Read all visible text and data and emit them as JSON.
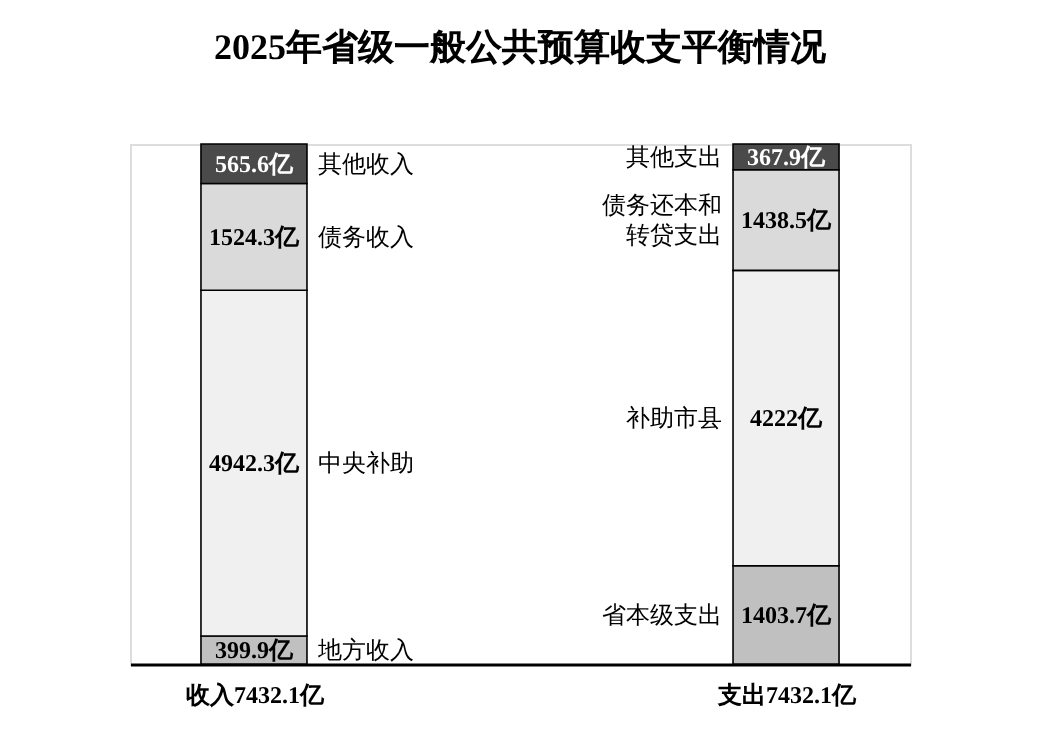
{
  "chart_data": {
    "type": "bar",
    "title": "2025年省级一般公共预算收支平衡情况",
    "categories": [
      "收入7432.1亿",
      "支出7432.1亿"
    ],
    "stacked": true,
    "legend": false,
    "series": [
      {
        "color": "#c0c0c0",
        "values": [
          399.9,
          1403.7
        ],
        "value_labels": [
          "399.9亿",
          "1403.7亿"
        ]
      },
      {
        "color": "#f0f0f0",
        "values": [
          4942.3,
          4222
        ],
        "value_labels": [
          "4942.3亿",
          "4222亿"
        ]
      },
      {
        "color": "#dadada",
        "values": [
          1524.3,
          1438.5
        ],
        "value_labels": [
          "1524.3亿",
          "1438.5亿"
        ]
      },
      {
        "color": "#4a4a4a",
        "values": [
          565.6,
          367.9
        ],
        "value_labels": [
          "565.6亿",
          "367.9亿"
        ]
      }
    ],
    "annotations": [
      "地方收入",
      "中央补助",
      "债务收入",
      "其他收入",
      "省本级支出",
      "补助市县",
      "债务还本和转贷支出",
      "其他支出"
    ]
  }
}
